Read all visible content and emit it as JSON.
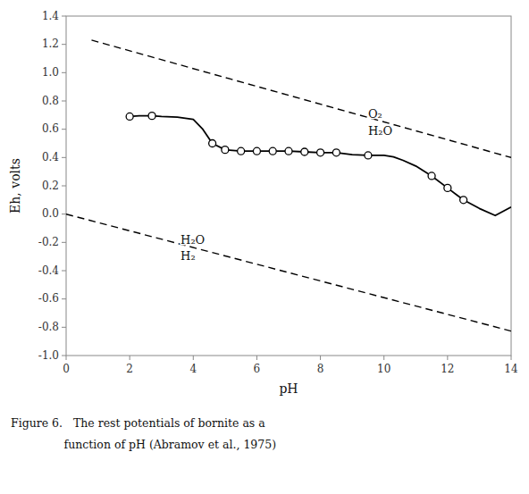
{
  "chart_data": {
    "type": "line",
    "xlabel": "pH",
    "ylabel": "Eh, volts",
    "caption": [
      "Figure 6.   The rest potentials of bornite as a",
      "               function of pH (Abramov et al., 1975)"
    ],
    "xlim": [
      0,
      14
    ],
    "ylim": [
      -1.0,
      1.4
    ],
    "xticks": [
      0,
      2,
      4,
      6,
      8,
      10,
      12,
      14
    ],
    "yticks": [
      {
        "value": -1.0,
        "label": "-1.0"
      },
      -0.8,
      -0.6,
      -0.4,
      -0.2,
      {
        "value": 0.0,
        "label": "0.0"
      },
      0.2,
      0.4,
      0.6,
      0.8,
      {
        "value": 1.0,
        "label": "1.0"
      },
      1.2,
      1.4
    ],
    "grid": false,
    "series": [
      {
        "type": "line",
        "line_style": "dashed",
        "color": "#000000",
        "x": [
          0.8,
          14
        ],
        "values": [
          1.23,
          0.4
        ]
      },
      {
        "type": "line",
        "line_style": "dashed",
        "color": "#000000",
        "x": [
          0,
          14
        ],
        "values": [
          0.0,
          -0.827
        ]
      },
      {
        "type": "line",
        "line_style": "solid",
        "color": "#000000",
        "x": [
          2.0,
          2.3,
          2.7,
          3.0,
          3.5,
          4.0,
          4.3,
          4.6,
          5.0,
          5.5,
          6.0,
          6.5,
          7.0,
          7.5,
          8.0,
          8.5,
          9.0,
          9.5,
          10.0,
          10.3,
          10.6,
          11.0,
          11.5,
          12.0,
          12.5,
          13.0,
          13.5,
          14.0
        ],
        "values": [
          0.69,
          0.695,
          0.695,
          0.69,
          0.685,
          0.67,
          0.6,
          0.5,
          0.455,
          0.445,
          0.445,
          0.445,
          0.445,
          0.44,
          0.435,
          0.435,
          0.42,
          0.415,
          0.415,
          0.405,
          0.38,
          0.34,
          0.27,
          0.185,
          0.1,
          0.04,
          -0.01,
          0.05
        ]
      },
      {
        "type": "scatter",
        "marker": "circle",
        "color": "#000000",
        "x": [
          2.0,
          2.7,
          4.6,
          5.0,
          5.5,
          6.0,
          6.5,
          7.0,
          7.5,
          8.0,
          8.5,
          9.5,
          11.5,
          12.0,
          12.5
        ],
        "values": [
          0.69,
          0.695,
          0.5,
          0.455,
          0.445,
          0.445,
          0.445,
          0.445,
          0.44,
          0.435,
          0.435,
          0.415,
          0.27,
          0.185,
          0.1
        ]
      }
    ],
    "annotations": [
      {
        "text": "O₂",
        "x": 9.5,
        "y": 0.705
      },
      {
        "text": "H₂O",
        "x": 9.5,
        "y": 0.585
      },
      {
        "text": "H₂O",
        "x": 3.6,
        "y": -0.19
      },
      {
        "text": "H₂",
        "x": 3.6,
        "y": -0.305
      }
    ]
  }
}
